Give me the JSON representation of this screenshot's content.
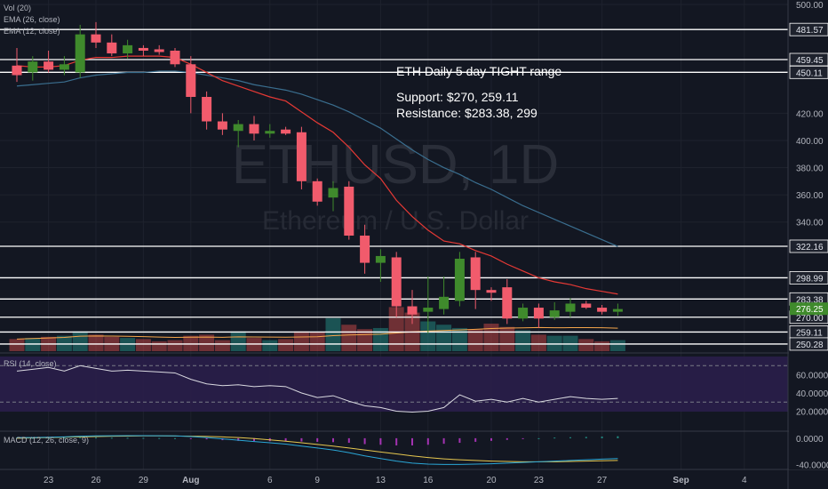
{
  "watermark": {
    "symbol": "ETHUSD, 1D",
    "name": "Ethereum / U.S. Dollar"
  },
  "indicators": {
    "vol": "Vol (20)",
    "ema26": "EMA (26, close)",
    "ema12": "EMA (12, close)",
    "rsi": "RSI (14, close)",
    "macd": "MACD (12, 26, close, 9)"
  },
  "annotation": {
    "title": "ETH Daily 5 day TIGHT range",
    "support": "Support: $270, 259.11",
    "resistance": "Resistance: $283.38, 299"
  },
  "colors": {
    "background": "#131722",
    "up": "#26a69a",
    "up_candle": "#3f8a2c",
    "down": "#ef5350",
    "down_candle": "#f15b6c",
    "ema12": "#e53935",
    "ema26": "#3a6e8f",
    "rsi_band": "#2a1e4a",
    "macd": "#2aa6d6",
    "signal": "#e6c74f"
  },
  "chart_data": {
    "type": "candlestick",
    "x_tick_labels": [
      "23",
      "26",
      "29",
      "Aug",
      "6",
      "9",
      "13",
      "16",
      "20",
      "23",
      "27",
      "Sep",
      "4"
    ],
    "y_tick_labels": [
      "500.00",
      "420.00",
      "400.00",
      "380.00",
      "360.00",
      "340.00"
    ],
    "ylim": [
      245,
      500
    ],
    "horizontal_levels": [
      {
        "label": "481.57",
        "value": 481.57
      },
      {
        "label": "459.45",
        "value": 459.45
      },
      {
        "label": "450.11",
        "value": 450.11
      },
      {
        "label": "322.16",
        "value": 322.16
      },
      {
        "label": "298.99",
        "value": 298.99
      },
      {
        "label": "283.38",
        "value": 283.38
      },
      {
        "label": "270.00",
        "value": 270.0
      },
      {
        "label": "259.11",
        "value": 259.11
      },
      {
        "label": "250.28",
        "value": 250.28
      }
    ],
    "last_price": {
      "label": "276.25",
      "value": 276.25
    },
    "candles": [
      {
        "o": 455,
        "h": 468,
        "l": 443,
        "c": 448
      },
      {
        "o": 450,
        "h": 462,
        "l": 444,
        "c": 458
      },
      {
        "o": 458,
        "h": 466,
        "l": 450,
        "c": 452
      },
      {
        "o": 452,
        "h": 462,
        "l": 448,
        "c": 456
      },
      {
        "o": 450,
        "h": 485,
        "l": 446,
        "c": 478
      },
      {
        "o": 478,
        "h": 487,
        "l": 468,
        "c": 472
      },
      {
        "o": 472,
        "h": 478,
        "l": 462,
        "c": 464
      },
      {
        "o": 464,
        "h": 474,
        "l": 460,
        "c": 470
      },
      {
        "o": 468,
        "h": 470,
        "l": 462,
        "c": 466
      },
      {
        "o": 467,
        "h": 470,
        "l": 463,
        "c": 465
      },
      {
        "o": 466,
        "h": 468,
        "l": 454,
        "c": 456
      },
      {
        "o": 456,
        "h": 462,
        "l": 420,
        "c": 432
      },
      {
        "o": 432,
        "h": 436,
        "l": 408,
        "c": 414
      },
      {
        "o": 414,
        "h": 420,
        "l": 404,
        "c": 408
      },
      {
        "o": 407,
        "h": 415,
        "l": 395,
        "c": 412
      },
      {
        "o": 412,
        "h": 418,
        "l": 400,
        "c": 405
      },
      {
        "o": 405,
        "h": 412,
        "l": 402,
        "c": 407
      },
      {
        "o": 408,
        "h": 410,
        "l": 404,
        "c": 405
      },
      {
        "o": 406,
        "h": 410,
        "l": 364,
        "c": 370
      },
      {
        "o": 370,
        "h": 372,
        "l": 352,
        "c": 355
      },
      {
        "o": 358,
        "h": 370,
        "l": 348,
        "c": 365
      },
      {
        "o": 366,
        "h": 370,
        "l": 327,
        "c": 330
      },
      {
        "o": 330,
        "h": 338,
        "l": 302,
        "c": 310
      },
      {
        "o": 310,
        "h": 320,
        "l": 296,
        "c": 315
      },
      {
        "o": 314,
        "h": 318,
        "l": 270,
        "c": 278
      },
      {
        "o": 278,
        "h": 290,
        "l": 265,
        "c": 272
      },
      {
        "o": 274,
        "h": 300,
        "l": 258,
        "c": 277
      },
      {
        "o": 276,
        "h": 300,
        "l": 272,
        "c": 285
      },
      {
        "o": 282,
        "h": 318,
        "l": 278,
        "c": 313
      },
      {
        "o": 314,
        "h": 318,
        "l": 276,
        "c": 290
      },
      {
        "o": 290,
        "h": 292,
        "l": 282,
        "c": 288
      },
      {
        "o": 292,
        "h": 298,
        "l": 265,
        "c": 269
      },
      {
        "o": 269,
        "h": 280,
        "l": 267,
        "c": 277
      },
      {
        "o": 277,
        "h": 280,
        "l": 262,
        "c": 269
      },
      {
        "o": 270,
        "h": 281,
        "l": 268,
        "c": 275
      },
      {
        "o": 274,
        "h": 284,
        "l": 270,
        "c": 280
      },
      {
        "o": 280,
        "h": 282,
        "l": 276,
        "c": 277
      },
      {
        "o": 277,
        "h": 279,
        "l": 272,
        "c": 274
      },
      {
        "o": 274,
        "h": 280,
        "l": 271,
        "c": 276
      }
    ],
    "volume": [
      22,
      24,
      26,
      28,
      36,
      30,
      26,
      24,
      22,
      18,
      20,
      28,
      30,
      20,
      36,
      24,
      20,
      22,
      36,
      34,
      60,
      48,
      40,
      42,
      80,
      70,
      54,
      48,
      42,
      40,
      50,
      44,
      38,
      30,
      28,
      28,
      22,
      18,
      20
    ],
    "ema12": [
      455,
      454,
      454,
      455,
      459,
      461,
      461,
      462,
      462,
      462,
      461,
      456,
      450,
      444,
      440,
      436,
      432,
      429,
      421,
      413,
      406,
      395,
      382,
      372,
      356,
      344,
      334,
      326,
      324,
      319,
      315,
      309,
      304,
      299,
      296,
      294,
      291,
      289,
      287
    ],
    "ema26": [
      440,
      441,
      442,
      443,
      446,
      448,
      449,
      450,
      450,
      451,
      451,
      450,
      448,
      446,
      444,
      441,
      439,
      437,
      434,
      430,
      426,
      421,
      415,
      409,
      401,
      393,
      386,
      380,
      375,
      369,
      364,
      358,
      352,
      347,
      342,
      337,
      332,
      327,
      322
    ],
    "rsi": [
      64,
      66,
      68,
      64,
      70,
      67,
      64,
      65,
      64,
      63,
      62,
      55,
      50,
      48,
      49,
      47,
      48,
      47,
      40,
      35,
      37,
      31,
      26,
      24,
      20,
      19,
      20,
      24,
      38,
      31,
      33,
      30,
      34,
      30,
      33,
      36,
      34,
      33,
      34
    ],
    "rsi_range": [
      0,
      80
    ],
    "rsi_ticks": [
      "60.0000",
      "40.0000",
      "20.0000"
    ],
    "rsi_bands": [
      70,
      30
    ],
    "macd": [
      1,
      1,
      1.5,
      2,
      3,
      3.5,
      3.8,
      4,
      4,
      3.8,
      3.5,
      2.5,
      1,
      -1,
      -3,
      -5,
      -7,
      -9,
      -12,
      -15,
      -18,
      -22,
      -27,
      -31,
      -35,
      -38,
      -39.5,
      -40,
      -40,
      -39.5,
      -39,
      -38,
      -37,
      -36,
      -35,
      -34,
      -33,
      -32,
      -31
    ],
    "signal": [
      0,
      0.5,
      1,
      1.5,
      2,
      2.5,
      3,
      3.3,
      3.5,
      3.5,
      3.4,
      3.1,
      2.7,
      2,
      1,
      -0.5,
      -2.5,
      -4.5,
      -7,
      -9.5,
      -12,
      -15,
      -18,
      -21,
      -24,
      -27,
      -29.5,
      -31.5,
      -33,
      -34,
      -35,
      -35.5,
      -36,
      -36,
      -36,
      -35.5,
      -35,
      -34.5,
      -34
    ],
    "macd_range": [
      -45,
      8
    ],
    "macd_ticks": [
      "0.0000",
      "-40.0000"
    ]
  }
}
